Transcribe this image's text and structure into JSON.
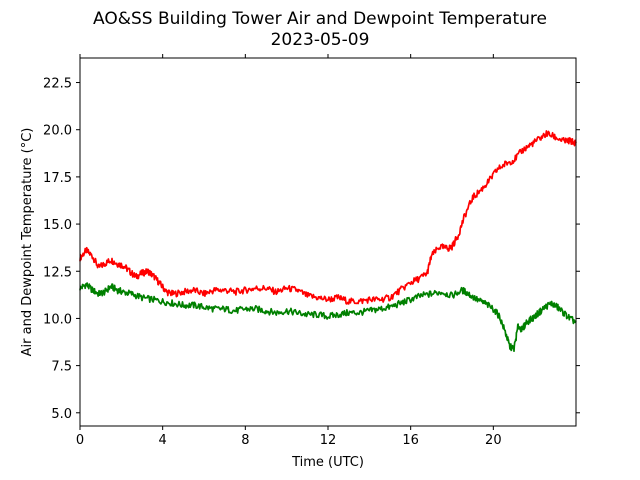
{
  "chart_data": {
    "type": "line",
    "title": "AO&SS Building Tower Air and Dewpoint Temperature",
    "subtitle": "2023-05-09",
    "xlabel": "Time (UTC)",
    "ylabel": "Air and Dewpoint Temperature (°C)",
    "xlim": [
      0,
      24
    ],
    "ylim": [
      4.3,
      23.8
    ],
    "xticks": [
      0,
      4,
      8,
      12,
      16,
      20
    ],
    "yticks": [
      5.0,
      7.5,
      10.0,
      12.5,
      15.0,
      17.5,
      20.0,
      22.5
    ],
    "ytick_format": "0.0",
    "grid": false,
    "legend": "none",
    "series": [
      {
        "color": "#ff0000",
        "x": [
          0,
          0.3,
          0.6,
          0.9,
          1.2,
          1.5,
          1.8,
          2.1,
          2.4,
          2.7,
          3.0,
          3.3,
          3.6,
          3.9,
          4.2,
          4.5,
          5.0,
          5.5,
          6.0,
          6.5,
          7.0,
          7.5,
          8.0,
          8.5,
          9.0,
          9.5,
          10.0,
          10.5,
          11.0,
          11.5,
          12.0,
          12.5,
          13.0,
          13.5,
          14.0,
          14.5,
          15.0,
          15.5,
          16.0,
          16.4,
          16.8,
          17.0,
          17.4,
          17.8,
          18.0,
          18.3,
          18.6,
          19.0,
          19.4,
          19.8,
          20.2,
          20.6,
          21.0,
          21.4,
          21.8,
          22.2,
          22.6,
          23.0,
          23.4,
          23.7,
          24.0
        ],
        "values": [
          13.2,
          13.6,
          13.3,
          12.7,
          12.9,
          13.1,
          12.9,
          12.8,
          12.5,
          12.2,
          12.4,
          12.5,
          12.2,
          11.8,
          11.4,
          11.3,
          11.4,
          11.5,
          11.3,
          11.5,
          11.5,
          11.4,
          11.5,
          11.6,
          11.6,
          11.4,
          11.6,
          11.5,
          11.2,
          11.1,
          11.0,
          11.1,
          10.9,
          10.9,
          11.0,
          11.0,
          11.1,
          11.5,
          11.9,
          12.1,
          12.4,
          13.3,
          13.8,
          13.7,
          13.8,
          14.4,
          15.4,
          16.4,
          16.8,
          17.3,
          17.9,
          18.2,
          18.4,
          18.9,
          19.2,
          19.5,
          19.8,
          19.6,
          19.4,
          19.4,
          19.3
        ]
      },
      {
        "color": "#008000",
        "x": [
          0,
          0.3,
          0.6,
          0.9,
          1.2,
          1.5,
          1.8,
          2.1,
          2.5,
          3.0,
          3.5,
          4.0,
          4.5,
          5.0,
          5.5,
          6.0,
          6.5,
          7.0,
          7.5,
          8.0,
          8.5,
          9.0,
          9.5,
          10.0,
          10.5,
          11.0,
          11.5,
          12.0,
          12.5,
          13.0,
          13.5,
          14.0,
          14.5,
          15.0,
          15.5,
          16.0,
          16.5,
          17.0,
          17.5,
          18.0,
          18.5,
          18.8,
          19.2,
          19.6,
          20.0,
          20.3,
          20.6,
          20.8,
          21.0,
          21.2,
          21.4,
          21.6,
          21.9,
          22.2,
          22.5,
          22.8,
          23.1,
          23.4,
          23.7,
          24.0
        ],
        "values": [
          11.6,
          11.8,
          11.5,
          11.3,
          11.4,
          11.7,
          11.5,
          11.4,
          11.3,
          11.1,
          11.0,
          10.9,
          10.8,
          10.7,
          10.7,
          10.6,
          10.5,
          10.5,
          10.4,
          10.5,
          10.5,
          10.4,
          10.3,
          10.4,
          10.3,
          10.2,
          10.2,
          10.1,
          10.2,
          10.3,
          10.3,
          10.4,
          10.5,
          10.6,
          10.8,
          11.0,
          11.2,
          11.3,
          11.4,
          11.2,
          11.5,
          11.3,
          11.0,
          10.8,
          10.5,
          10.1,
          9.2,
          8.5,
          8.4,
          9.6,
          9.4,
          9.8,
          10.0,
          10.3,
          10.6,
          10.8,
          10.6,
          10.3,
          10.0,
          9.8
        ]
      }
    ]
  }
}
